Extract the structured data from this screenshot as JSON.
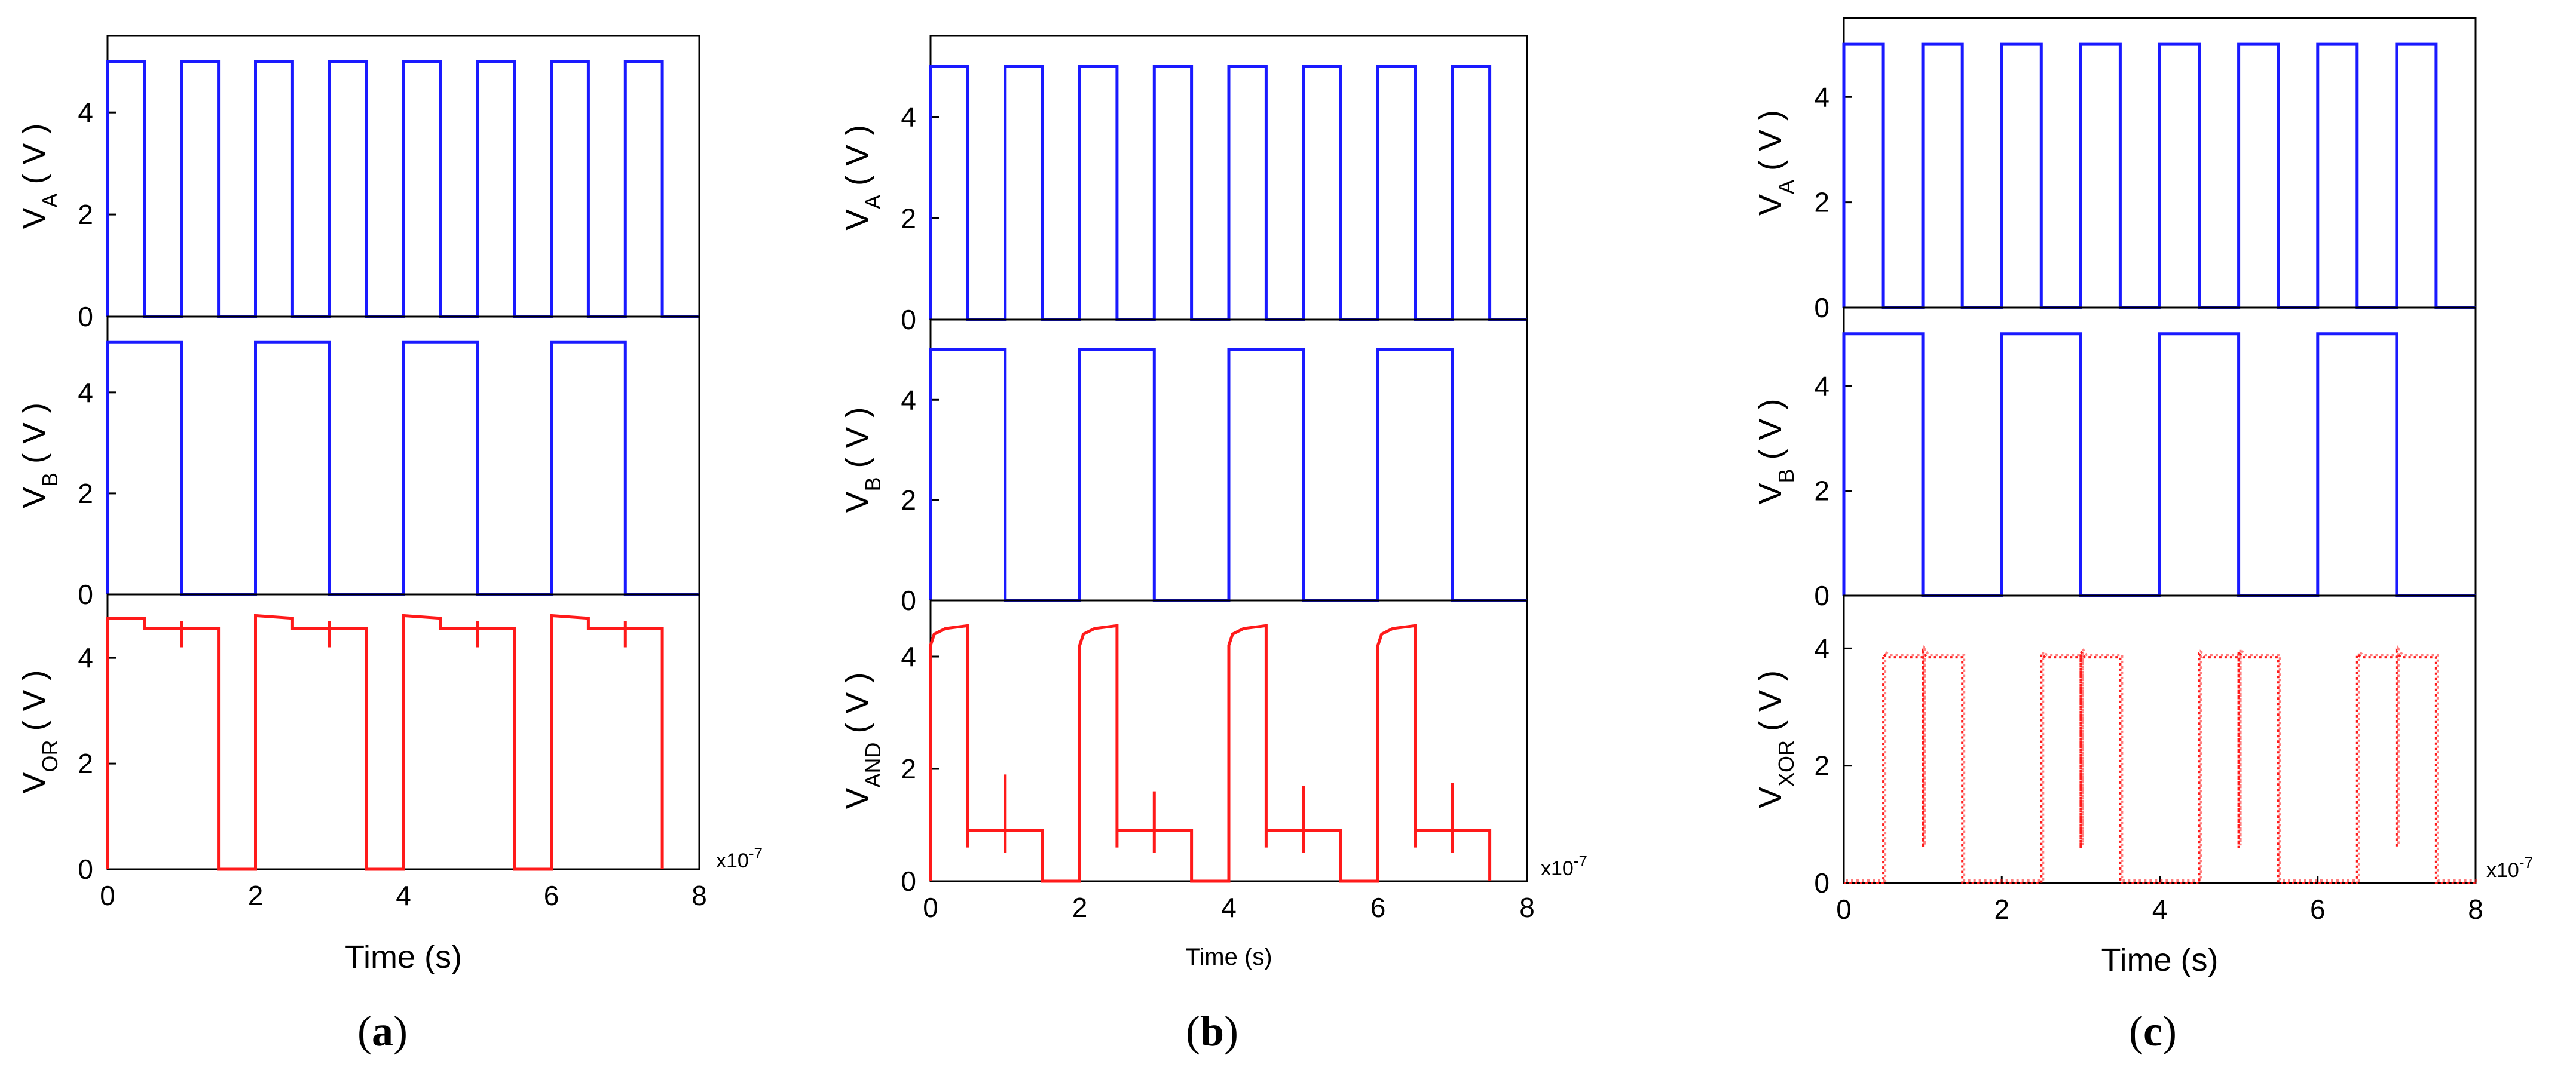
{
  "colors": {
    "input": "#1a1aff",
    "output": "#ff1a1a",
    "axis": "#000000"
  },
  "chart_data": [
    {
      "type": "line",
      "panel": "a",
      "caption": [
        "(",
        "a",
        ")"
      ],
      "xlabel": "Time (s)",
      "x_multiplier": "x10",
      "x_multiplier_exp": "-7",
      "xlim": [
        0,
        8
      ],
      "x_ticks": [
        "0",
        "2",
        "4",
        "6",
        "8"
      ],
      "subplots": [
        {
          "ylabel": {
            "main": "V",
            "sub": "A",
            "unit": " ( V )"
          },
          "ylim": [
            0,
            5.5
          ],
          "y_ticks": [
            "0",
            "2",
            "4"
          ],
          "series": [
            {
              "color": "input",
              "style": "solid",
              "x": [
                0,
                0,
                0.5,
                0.5,
                1,
                1,
                1.5,
                1.5,
                2,
                2,
                2.5,
                2.5,
                3,
                3,
                3.5,
                3.5,
                4,
                4,
                4.5,
                4.5,
                5,
                5,
                5.5,
                5.5,
                6,
                6,
                6.5,
                6.5,
                7,
                7,
                7.5,
                7.5,
                8
              ],
              "y": [
                0,
                5,
                5,
                0,
                0,
                5,
                5,
                0,
                0,
                5,
                5,
                0,
                0,
                5,
                5,
                0,
                0,
                5,
                5,
                0,
                0,
                5,
                5,
                0,
                0,
                5,
                5,
                0,
                0,
                5,
                5,
                0,
                0
              ]
            }
          ]
        },
        {
          "ylabel": {
            "main": "V",
            "sub": "B",
            "unit": " ( V )"
          },
          "ylim": [
            0,
            5.5
          ],
          "y_ticks": [
            "0",
            "2",
            "4"
          ],
          "series": [
            {
              "color": "input",
              "style": "solid",
              "x": [
                0,
                0,
                1,
                1,
                2,
                2,
                3,
                3,
                4,
                4,
                5,
                5,
                6,
                6,
                7,
                7,
                8
              ],
              "y": [
                0,
                5,
                5,
                0,
                0,
                5,
                5,
                0,
                0,
                5,
                5,
                0,
                0,
                5,
                5,
                0,
                0
              ]
            }
          ]
        },
        {
          "ylabel": {
            "main": "V",
            "sub": "OR",
            "unit": " ( V )"
          },
          "ylim": [
            0,
            5.2
          ],
          "y_ticks": [
            "0",
            "2",
            "4"
          ],
          "series": [
            {
              "color": "output",
              "style": "solid",
              "x": [
                0,
                0,
                0.5,
                0.5,
                1,
                1,
                1,
                1,
                1.5,
                1.5,
                2,
                2,
                2.5,
                2.5,
                3,
                3,
                3,
                3,
                3.5,
                3.5,
                4,
                4,
                4.5,
                4.5,
                5,
                5,
                5,
                5,
                5.5,
                5.5,
                6,
                6,
                6.5,
                6.5,
                7,
                7,
                7,
                7,
                7.5,
                7.5
              ],
              "y": [
                0,
                4.75,
                4.75,
                4.55,
                4.55,
                4.2,
                4.7,
                4.55,
                4.55,
                0,
                0,
                4.8,
                4.75,
                4.55,
                4.55,
                4.2,
                4.7,
                4.55,
                4.55,
                0,
                0,
                4.8,
                4.75,
                4.55,
                4.55,
                4.2,
                4.7,
                4.55,
                4.55,
                0,
                0,
                4.8,
                4.75,
                4.55,
                4.55,
                4.2,
                4.7,
                4.55,
                4.55,
                0
              ]
            }
          ]
        }
      ]
    },
    {
      "type": "line",
      "panel": "b",
      "caption": [
        "(",
        "b",
        ")"
      ],
      "xlabel": "Time (s)",
      "x_multiplier": "x10",
      "x_multiplier_exp": "-7",
      "xlim": [
        0,
        8
      ],
      "x_ticks": [
        "0",
        "2",
        "4",
        "6",
        "8"
      ],
      "subplots": [
        {
          "ylabel": {
            "main": "V",
            "sub": "A",
            "unit": " ( V )"
          },
          "ylim": [
            0,
            5.6
          ],
          "y_ticks": [
            "0",
            "2",
            "4"
          ],
          "series": [
            {
              "color": "input",
              "style": "solid",
              "x": [
                0,
                0,
                0.5,
                0.5,
                1,
                1,
                1.5,
                1.5,
                2,
                2,
                2.5,
                2.5,
                3,
                3,
                3.5,
                3.5,
                4,
                4,
                4.5,
                4.5,
                5,
                5,
                5.5,
                5.5,
                6,
                6,
                6.5,
                6.5,
                7,
                7,
                7.5,
                7.5,
                8
              ],
              "y": [
                0,
                5,
                5,
                0,
                0,
                5,
                5,
                0,
                0,
                5,
                5,
                0,
                0,
                5,
                5,
                0,
                0,
                5,
                5,
                0,
                0,
                5,
                5,
                0,
                0,
                5,
                5,
                0,
                0,
                5,
                5,
                0,
                0
              ]
            }
          ]
        },
        {
          "ylabel": {
            "main": "V",
            "sub": "B",
            "unit": " ( V )"
          },
          "ylim": [
            0,
            5.6
          ],
          "y_ticks": [
            "0",
            "2",
            "4"
          ],
          "series": [
            {
              "color": "input",
              "style": "solid",
              "x": [
                0,
                0,
                1,
                1,
                2,
                2,
                3,
                3,
                4,
                4,
                5,
                5,
                6,
                6,
                7,
                7,
                8
              ],
              "y": [
                0,
                5,
                5,
                0,
                0,
                5,
                5,
                0,
                0,
                5,
                5,
                0,
                0,
                5,
                5,
                0,
                0
              ]
            }
          ]
        },
        {
          "ylabel": {
            "main": "V",
            "sub": "AND",
            "unit": " ( V )"
          },
          "ylim": [
            0,
            5.0
          ],
          "y_ticks": [
            "0",
            "2",
            "4"
          ],
          "series": [
            {
              "color": "output",
              "style": "solid",
              "x": [
                0,
                0,
                0.05,
                0.2,
                0.5,
                0.5,
                0.5,
                1,
                1,
                1,
                1,
                1.5,
                1.5,
                2,
                2,
                2.05,
                2.2,
                2.5,
                2.5,
                2.5,
                3,
                3,
                3,
                3,
                3.5,
                3.5,
                4,
                4,
                4.05,
                4.2,
                4.5,
                4.5,
                4.5,
                5,
                5,
                5,
                5,
                5.5,
                5.5,
                6,
                6,
                6.05,
                6.2,
                6.5,
                6.5,
                6.5,
                7,
                7,
                7,
                7,
                7.5,
                7.5
              ],
              "y": [
                0,
                4.2,
                4.4,
                4.5,
                4.55,
                0.6,
                0.9,
                0.9,
                1.9,
                0.5,
                0.9,
                0.9,
                0,
                0,
                4.2,
                4.4,
                4.5,
                4.55,
                0.6,
                0.9,
                0.9,
                1.6,
                0.5,
                0.9,
                0.9,
                0,
                0,
                4.2,
                4.4,
                4.5,
                4.55,
                0.6,
                0.9,
                0.9,
                1.7,
                0.5,
                0.9,
                0.9,
                0,
                0,
                4.2,
                4.4,
                4.5,
                4.55,
                0.6,
                0.9,
                0.9,
                1.75,
                0.5,
                0.9,
                0.9,
                0
              ]
            }
          ]
        }
      ]
    },
    {
      "type": "line",
      "panel": "c",
      "caption": [
        "(",
        "c",
        ")"
      ],
      "xlabel": "Time (s)",
      "x_multiplier": "x10",
      "x_multiplier_exp": "-7",
      "xlim": [
        0,
        8
      ],
      "x_ticks": [
        "0",
        "2",
        "4",
        "6",
        "8"
      ],
      "subplots": [
        {
          "ylabel": {
            "main": "V",
            "sub": "A",
            "unit": " ( V )"
          },
          "ylim": [
            0,
            5.5
          ],
          "y_ticks": [
            "0",
            "2",
            "4"
          ],
          "series": [
            {
              "color": "input",
              "style": "solid",
              "x": [
                0,
                0,
                0.5,
                0.5,
                1,
                1,
                1.5,
                1.5,
                2,
                2,
                2.5,
                2.5,
                3,
                3,
                3.5,
                3.5,
                4,
                4,
                4.5,
                4.5,
                5,
                5,
                5.5,
                5.5,
                6,
                6,
                6.5,
                6.5,
                7,
                7,
                7.5,
                7.5,
                8
              ],
              "y": [
                0,
                5,
                5,
                0,
                0,
                5,
                5,
                0,
                0,
                5,
                5,
                0,
                0,
                5,
                5,
                0,
                0,
                5,
                5,
                0,
                0,
                5,
                5,
                0,
                0,
                5,
                5,
                0,
                0,
                5,
                5,
                0,
                0
              ]
            }
          ]
        },
        {
          "ylabel": {
            "main": "V",
            "sub": "B",
            "unit": " ( V )"
          },
          "ylim": [
            0,
            5.5
          ],
          "y_ticks": [
            "0",
            "2",
            "4"
          ],
          "series": [
            {
              "color": "input",
              "style": "solid",
              "x": [
                0,
                0,
                1,
                1,
                2,
                2,
                3,
                3,
                4,
                4,
                5,
                5,
                6,
                6,
                7,
                7,
                8
              ],
              "y": [
                0,
                5,
                5,
                0,
                0,
                5,
                5,
                0,
                0,
                5,
                5,
                0,
                0,
                5,
                5,
                0,
                0
              ]
            }
          ]
        },
        {
          "ylabel": {
            "main": "V",
            "sub": "XOR",
            "unit": " ( V )"
          },
          "ylim": [
            0,
            4.9
          ],
          "y_ticks": [
            "0",
            "2",
            "4"
          ],
          "series": [
            {
              "color": "output",
              "style": "dotted",
              "x": [
                0,
                0.5,
                0.5,
                0.55,
                0.95,
                1,
                1,
                1,
                1.05,
                1.45,
                1.5,
                1.5,
                2.5,
                2.5,
                2.55,
                2.95,
                3,
                3,
                3,
                3.05,
                3.45,
                3.5,
                3.5,
                4.5,
                4.5,
                4.55,
                4.95,
                5,
                5,
                5,
                5.05,
                5.45,
                5.5,
                5.5,
                6.5,
                6.5,
                6.55,
                6.95,
                7,
                7,
                7,
                7.05,
                7.45,
                7.5,
                7.5,
                8
              ],
              "y": [
                0,
                0,
                3.9,
                3.85,
                3.85,
                3.85,
                0.6,
                3.95,
                3.85,
                3.85,
                3.85,
                0,
                0,
                3.9,
                3.85,
                3.85,
                3.85,
                0.6,
                3.95,
                3.85,
                3.85,
                3.85,
                0,
                0,
                3.9,
                3.85,
                3.85,
                3.85,
                0.6,
                3.95,
                3.85,
                3.85,
                3.85,
                0,
                0,
                3.9,
                3.85,
                3.85,
                3.85,
                0.6,
                3.95,
                3.85,
                3.85,
                3.85,
                0,
                0
              ]
            }
          ]
        }
      ]
    }
  ]
}
